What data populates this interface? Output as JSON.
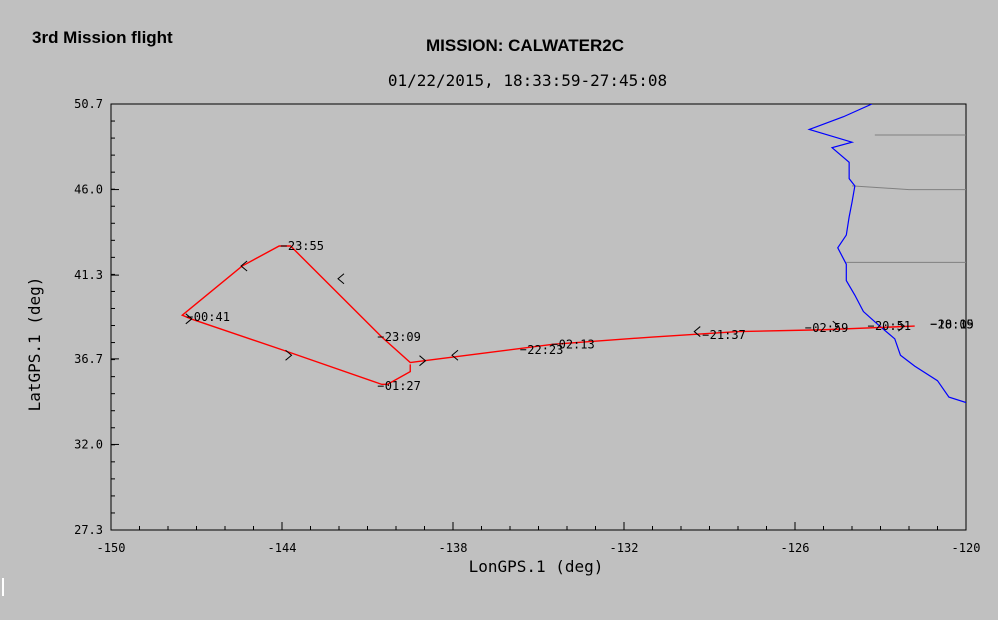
{
  "page": {
    "corner_title": "3rd Mission flight"
  },
  "chart_data": {
    "type": "line",
    "title": "MISSION: CALWATER2C",
    "subtitle": "01/22/2015, 18:33:59-27:45:08",
    "xlabel": "LonGPS.1 (deg)",
    "ylabel": "LatGPS.1 (deg)",
    "xlim": [
      -150,
      -120
    ],
    "ylim": [
      27.3,
      50.7
    ],
    "x_ticks": [
      -150,
      -144,
      -138,
      -132,
      -126,
      -120
    ],
    "x_tick_labels": [
      "-150",
      "-144",
      "-138",
      "-132",
      "-126",
      "-120"
    ],
    "y_ticks": [
      27.3,
      32.0,
      36.7,
      41.3,
      46.0,
      50.7
    ],
    "y_tick_labels": [
      "27.3",
      "32.0",
      "36.7",
      "41.3",
      "46.0",
      "50.7"
    ],
    "grid": false,
    "series": [
      {
        "color": "#ff0000",
        "points": [
          [
            -121.8,
            38.5
          ],
          [
            -125.0,
            38.3
          ],
          [
            -128.0,
            38.2
          ],
          [
            -131.0,
            37.9
          ],
          [
            -134.5,
            37.5
          ],
          [
            -137.0,
            37.0
          ],
          [
            -139.0,
            36.6
          ],
          [
            -139.5,
            36.5
          ],
          [
            -140.5,
            37.9
          ],
          [
            -143.7,
            42.9
          ],
          [
            -144.1,
            42.9
          ],
          [
            -145.4,
            41.8
          ],
          [
            -147.5,
            39.1
          ],
          [
            -147.2,
            38.9
          ],
          [
            -144.0,
            37.2
          ],
          [
            -140.5,
            35.3
          ],
          [
            -140.3,
            35.3
          ],
          [
            -139.5,
            36.0
          ],
          [
            -139.5,
            36.4
          ]
        ],
        "arrows": [
          [
            -122.2,
            38.5,
            "east"
          ],
          [
            -124.5,
            38.5,
            "east"
          ],
          [
            -129.5,
            38.2,
            "west"
          ],
          [
            -138.0,
            36.9,
            "west"
          ],
          [
            -139.0,
            36.6,
            "east"
          ],
          [
            -142.0,
            41.1,
            "west"
          ],
          [
            -145.4,
            41.8,
            "west"
          ],
          [
            -143.7,
            36.9,
            "east"
          ],
          [
            -147.2,
            38.9,
            "east"
          ]
        ]
      }
    ],
    "annotations": [
      {
        "text": "23:55",
        "x": -143.9,
        "y": 42.9
      },
      {
        "text": "00:41",
        "x": -147.2,
        "y": 39.0
      },
      {
        "text": "23:09",
        "x": -140.5,
        "y": 37.9
      },
      {
        "text": "01:27",
        "x": -140.5,
        "y": 35.2
      },
      {
        "text": "22:23",
        "x": -135.5,
        "y": 37.2
      },
      {
        "text": "02:13",
        "x": -134.4,
        "y": 37.5
      },
      {
        "text": "21:37",
        "x": -129.1,
        "y": 38.0
      },
      {
        "text": "02:59",
        "x": -125.5,
        "y": 38.4
      },
      {
        "text": "20:51",
        "x": -123.3,
        "y": 38.5
      },
      {
        "text": "20:05",
        "x": -121.1,
        "y": 38.6
      },
      {
        "text": "18:19",
        "x": -121.1,
        "y": 38.6
      }
    ],
    "map_features": {
      "coastline_color": "#0000ff",
      "border_color": "#808080",
      "coastline": [
        [
          -123.3,
          50.7
        ],
        [
          -124.3,
          50.0
        ],
        [
          -125.5,
          49.3
        ],
        [
          -124.0,
          48.6
        ],
        [
          -124.7,
          48.3
        ],
        [
          -124.1,
          47.5
        ],
        [
          -124.1,
          46.6
        ],
        [
          -123.9,
          46.2
        ],
        [
          -124.0,
          45.3
        ],
        [
          -124.1,
          44.5
        ],
        [
          -124.2,
          43.5
        ],
        [
          -124.5,
          42.8
        ],
        [
          -124.2,
          41.9
        ],
        [
          -124.2,
          41.0
        ],
        [
          -123.9,
          40.2
        ],
        [
          -123.6,
          39.3
        ],
        [
          -123.1,
          38.6
        ],
        [
          -122.5,
          37.8
        ],
        [
          -122.3,
          36.9
        ],
        [
          -121.8,
          36.3
        ],
        [
          -121.0,
          35.5
        ],
        [
          -120.6,
          34.6
        ],
        [
          -120.0,
          34.3
        ]
      ],
      "borders": [
        [
          [
            -123.2,
            49.0
          ],
          [
            -120.0,
            49.0
          ]
        ],
        [
          [
            -124.0,
            46.2
          ],
          [
            -122.0,
            46.0
          ],
          [
            -120.0,
            46.0
          ]
        ],
        [
          [
            -124.2,
            42.0
          ],
          [
            -120.0,
            42.0
          ]
        ]
      ]
    }
  }
}
